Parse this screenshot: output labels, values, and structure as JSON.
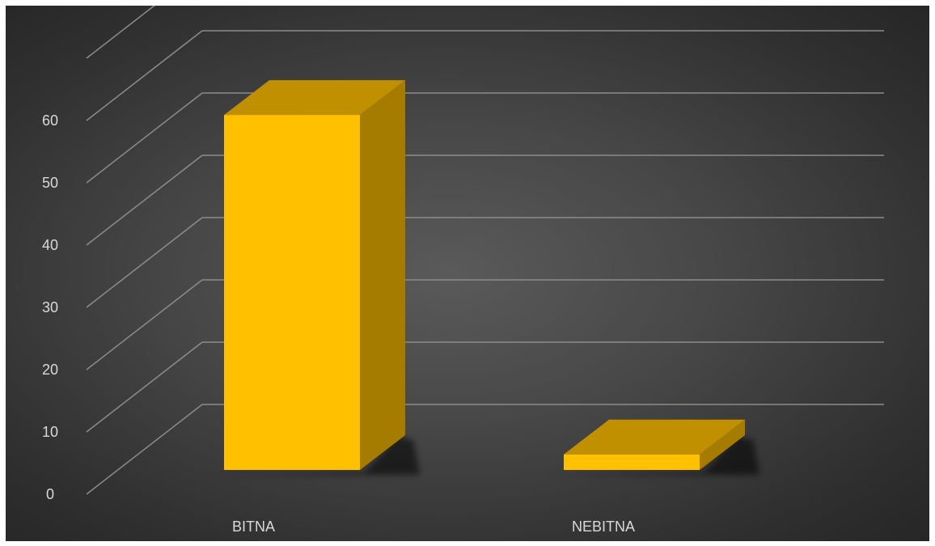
{
  "chart_data": {
    "type": "bar",
    "variant": "3d-column",
    "categories": [
      "BITNA",
      "NEBITNA"
    ],
    "values": [
      57,
      2.5
    ],
    "title": "",
    "xlabel": "",
    "ylabel": "",
    "ylim": [
      0,
      60
    ],
    "yticks": [
      "0",
      "10",
      "20",
      "30",
      "40",
      "50",
      "60"
    ],
    "grid": true,
    "legend": "none",
    "colors": {
      "bar_front": "#ffc000",
      "bar_top": "#c09000",
      "bar_side": "#a67c00",
      "background": "#474747",
      "gridline": "#8c8c8c",
      "text": "#d9d9d9"
    }
  }
}
